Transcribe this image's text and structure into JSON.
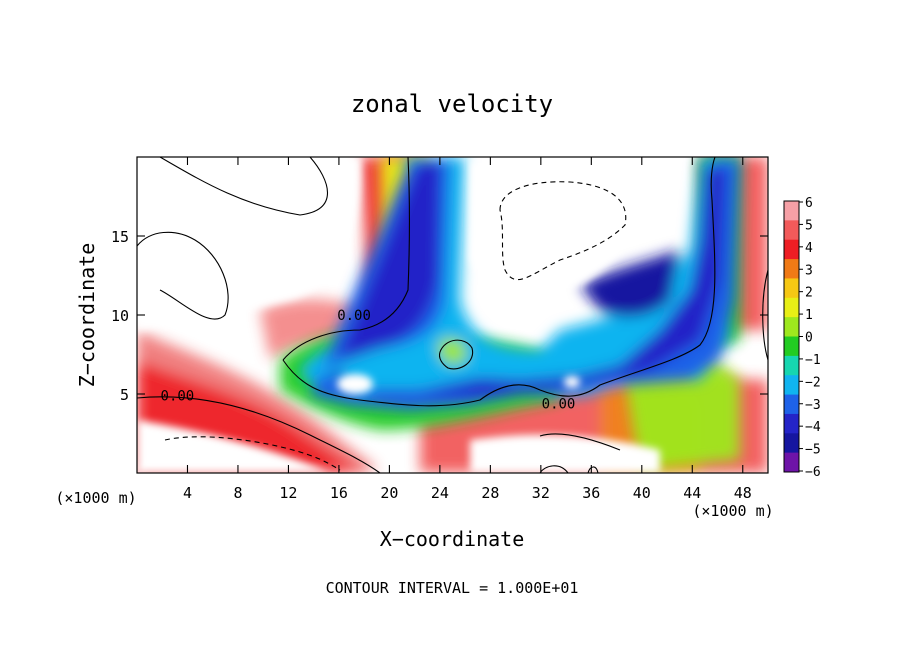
{
  "chart_data": {
    "type": "heatmap",
    "title": "zonal velocity",
    "xlabel": "X−coordinate",
    "ylabel": "Z−coordinate",
    "x_unit": "(×1000 m)",
    "xlim": [
      0,
      50
    ],
    "ylim": [
      0,
      20
    ],
    "xticks": [
      4,
      8,
      12,
      16,
      20,
      24,
      28,
      32,
      36,
      40,
      44,
      48
    ],
    "yticks": [
      5,
      10,
      15
    ],
    "colorbar": {
      "labels": [
        6,
        5,
        4,
        3,
        2,
        1,
        0,
        -1,
        -2,
        -3,
        -4,
        -5,
        -6
      ],
      "label_text": [
        "6",
        "5",
        "4",
        "3",
        "2",
        "1",
        "0",
        "−1",
        "−2",
        "−3",
        "−4",
        "−5",
        "−6"
      ],
      "colors": [
        "#f6a0a6",
        "#f25a5a",
        "#ee1e24",
        "#f07a16",
        "#f6c814",
        "#e8ef16",
        "#9ee81e",
        "#22cc22",
        "#16d6b0",
        "#10b4f0",
        "#1e62e8",
        "#2424c8",
        "#1616a0",
        "#6e14a8"
      ]
    },
    "contour_labels": [
      {
        "text": "0.00",
        "x": 17.2,
        "z": 9.8
      },
      {
        "text": "0.00",
        "x": 3.2,
        "z": 4.7
      },
      {
        "text": "0.00",
        "x": 33.4,
        "z": 4.2
      }
    ],
    "footer": "CONTOUR INTERVAL = 1.000E+01"
  }
}
